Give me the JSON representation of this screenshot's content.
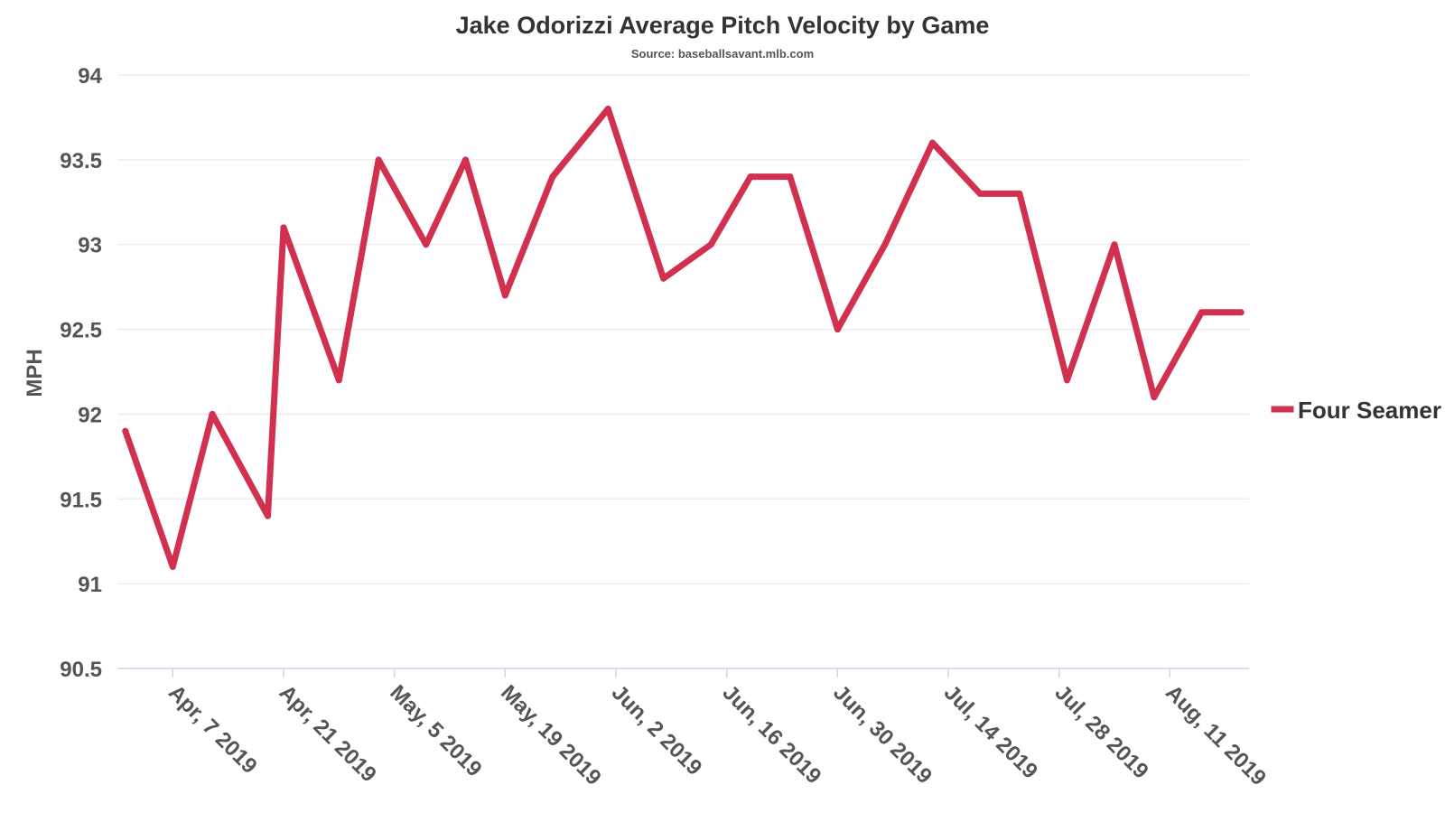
{
  "chart_data": {
    "type": "line",
    "title": "Jake Odorizzi Average Pitch Velocity by Game",
    "subtitle": "Source: baseballsavant.mlb.com",
    "ylabel": "MPH",
    "xlabel": "",
    "ylim": [
      90.5,
      94
    ],
    "yticks": [
      "90.5",
      "91",
      "91.5",
      "92",
      "92.5",
      "93",
      "93.5",
      "94"
    ],
    "grid": true,
    "legend_position": "right",
    "x_start": "2019-03-31",
    "x_end": "2019-08-21",
    "xticks": [
      {
        "date": "2019-04-07",
        "label": "Apr, 7 2019"
      },
      {
        "date": "2019-04-21",
        "label": "Apr, 21 2019"
      },
      {
        "date": "2019-05-05",
        "label": "May, 5 2019"
      },
      {
        "date": "2019-05-19",
        "label": "May, 19 2019"
      },
      {
        "date": "2019-06-02",
        "label": "Jun, 2 2019"
      },
      {
        "date": "2019-06-16",
        "label": "Jun, 16 2019"
      },
      {
        "date": "2019-06-30",
        "label": "Jun, 30 2019"
      },
      {
        "date": "2019-07-14",
        "label": "Jul, 14 2019"
      },
      {
        "date": "2019-07-28",
        "label": "Jul, 28 2019"
      },
      {
        "date": "2019-08-11",
        "label": "Aug, 11 2019"
      }
    ],
    "series": [
      {
        "name": "Four Seamer",
        "color": "#d1304f",
        "points": [
          {
            "x": "2019-04-01",
            "y": 91.9
          },
          {
            "x": "2019-04-07",
            "y": 91.1
          },
          {
            "x": "2019-04-12",
            "y": 92.0
          },
          {
            "x": "2019-04-19",
            "y": 91.4
          },
          {
            "x": "2019-04-21",
            "y": 93.1
          },
          {
            "x": "2019-04-28",
            "y": 92.2
          },
          {
            "x": "2019-05-03",
            "y": 93.5
          },
          {
            "x": "2019-05-09",
            "y": 93.0
          },
          {
            "x": "2019-05-14",
            "y": 93.5
          },
          {
            "x": "2019-05-19",
            "y": 92.7
          },
          {
            "x": "2019-05-25",
            "y": 93.4
          },
          {
            "x": "2019-06-01",
            "y": 93.8
          },
          {
            "x": "2019-06-08",
            "y": 92.8
          },
          {
            "x": "2019-06-14",
            "y": 93.0
          },
          {
            "x": "2019-06-19",
            "y": 93.4
          },
          {
            "x": "2019-06-24",
            "y": 93.4
          },
          {
            "x": "2019-06-30",
            "y": 92.5
          },
          {
            "x": "2019-07-06",
            "y": 93.0
          },
          {
            "x": "2019-07-12",
            "y": 93.6
          },
          {
            "x": "2019-07-18",
            "y": 93.3
          },
          {
            "x": "2019-07-23",
            "y": 93.3
          },
          {
            "x": "2019-07-29",
            "y": 92.2
          },
          {
            "x": "2019-08-04",
            "y": 93.0
          },
          {
            "x": "2019-08-09",
            "y": 92.1
          },
          {
            "x": "2019-08-15",
            "y": 92.6
          },
          {
            "x": "2019-08-20",
            "y": 92.6
          }
        ]
      }
    ]
  }
}
